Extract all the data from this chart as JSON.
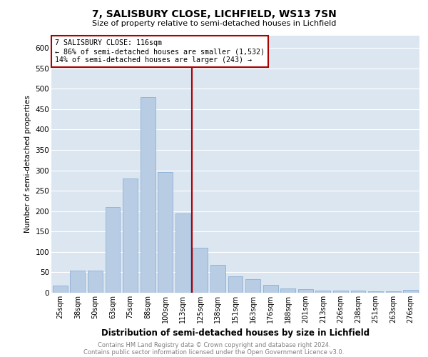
{
  "title": "7, SALISBURY CLOSE, LICHFIELD, WS13 7SN",
  "subtitle": "Size of property relative to semi-detached houses in Lichfield",
  "xlabel": "Distribution of semi-detached houses by size in Lichfield",
  "ylabel": "Number of semi-detached properties",
  "footnote1": "Contains HM Land Registry data © Crown copyright and database right 2024.",
  "footnote2": "Contains public sector information licensed under the Open Government Licence v3.0.",
  "annotation_line1": "7 SALISBURY CLOSE: 116sqm",
  "annotation_line2": "← 86% of semi-detached houses are smaller (1,532)",
  "annotation_line3": "14% of semi-detached houses are larger (243) →",
  "categories": [
    "25sqm",
    "38sqm",
    "50sqm",
    "63sqm",
    "75sqm",
    "88sqm",
    "100sqm",
    "113sqm",
    "125sqm",
    "138sqm",
    "151sqm",
    "163sqm",
    "176sqm",
    "188sqm",
    "201sqm",
    "213sqm",
    "226sqm",
    "238sqm",
    "251sqm",
    "263sqm",
    "276sqm"
  ],
  "values": [
    18,
    55,
    55,
    210,
    280,
    480,
    295,
    195,
    110,
    68,
    40,
    33,
    20,
    10,
    8,
    6,
    5,
    5,
    4,
    3,
    7
  ],
  "bar_color": "#b8cce4",
  "bar_edge_color": "#7fa8d0",
  "vline_index": 7,
  "vline_color": "#aa0000",
  "background_color": "#dce6f1",
  "grid_color": "#ffffff",
  "ylim": [
    0,
    630
  ],
  "yticks": [
    0,
    50,
    100,
    150,
    200,
    250,
    300,
    350,
    400,
    450,
    500,
    550,
    600
  ]
}
